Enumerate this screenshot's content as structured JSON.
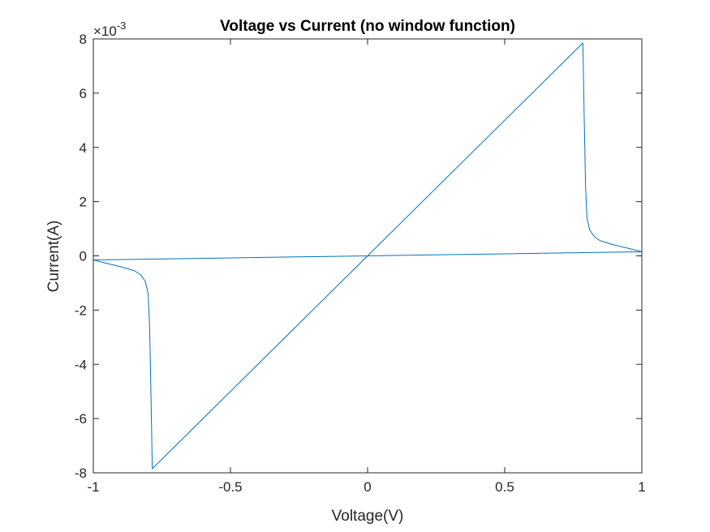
{
  "chart_data": {
    "type": "line",
    "title": "Voltage vs Current (no window function)",
    "xlabel": "Voltage(V)",
    "ylabel": "Current(A)",
    "xlim": [
      -1,
      1
    ],
    "ylim": [
      -8,
      8
    ],
    "x_ticks": [
      -1,
      -0.5,
      0,
      0.5,
      1
    ],
    "x_tick_labels": [
      "-1",
      "-0.5",
      "0",
      "0.5",
      "1"
    ],
    "y_ticks": [
      -8,
      -6,
      -4,
      -2,
      0,
      2,
      4,
      6,
      8
    ],
    "y_tick_labels": [
      "-8",
      "-6",
      "-4",
      "-2",
      "0",
      "2",
      "4",
      "6",
      "8"
    ],
    "y_exponent_base": "×10",
    "y_exponent_power": "-3",
    "grid": false,
    "line_color": "#0072BD",
    "series": [
      {
        "x": [
          0,
          0.785,
          0.79,
          0.795,
          0.8,
          0.81,
          0.82,
          0.83,
          0.85,
          0.9,
          0.95,
          1,
          0.5,
          0,
          -0.5,
          -1,
          -0.95,
          -0.9,
          -0.85,
          -0.83,
          -0.82,
          -0.81,
          -0.8,
          -0.795,
          -0.79,
          -0.785,
          0
        ],
        "y": [
          0,
          7.85,
          5.0,
          2.5,
          1.4,
          0.95,
          0.8,
          0.68,
          0.55,
          0.4,
          0.28,
          0.15,
          0.075,
          0,
          -0.075,
          -0.15,
          -0.28,
          -0.4,
          -0.55,
          -0.68,
          -0.8,
          -0.95,
          -1.4,
          -2.5,
          -5.0,
          -7.85,
          0
        ]
      }
    ]
  }
}
